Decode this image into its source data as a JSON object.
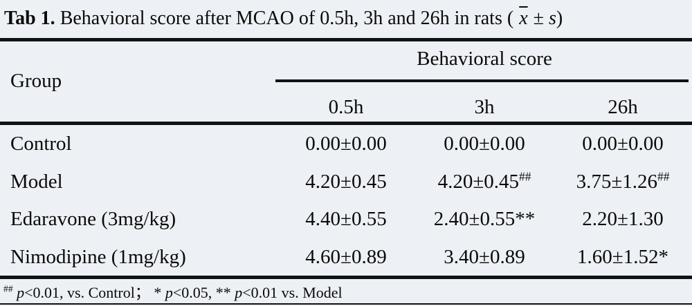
{
  "colors": {
    "background": "#edf0f4",
    "rule": "#101214",
    "text": "#0a0a0a"
  },
  "caption": {
    "tag": "Tab 1.",
    "text": "Behavioral score after MCAO of 0.5h, 3h and 26h in rats (",
    "mean_symbol": "x",
    "plus_minus": "±",
    "sd_symbol": "s",
    "close_paren": ")"
  },
  "table": {
    "group_header": "Group",
    "span_header": "Behavioral score",
    "time_columns": [
      "0.5h",
      "3h",
      "26h"
    ],
    "rows": [
      {
        "group": "Control",
        "cells": [
          {
            "text": "0.00±0.00"
          },
          {
            "text": "0.00±0.00"
          },
          {
            "text": "0.00±0.00"
          }
        ]
      },
      {
        "group": "Model",
        "cells": [
          {
            "text": "4.20±0.45"
          },
          {
            "text": "4.20±0.45",
            "sup": "##"
          },
          {
            "text": "3.75±1.26",
            "sup": "##"
          }
        ]
      },
      {
        "group": "Edaravone (3mg/kg)",
        "cells": [
          {
            "text": "4.40±0.55"
          },
          {
            "text": "2.40±0.55**"
          },
          {
            "text": "2.20±1.30"
          }
        ]
      },
      {
        "group": "Nimodipine (1mg/kg)",
        "cells": [
          {
            "text": "4.60±0.89"
          },
          {
            "text": "3.40±0.89"
          },
          {
            "text": "1.60±1.52*"
          }
        ]
      }
    ]
  },
  "footnote": {
    "parts": [
      {
        "sup": "##"
      },
      {
        "text": " "
      },
      {
        "i": "p"
      },
      {
        "text": "<0.01, vs. Control；  * "
      },
      {
        "i": "p"
      },
      {
        "text": "<0.05, ** "
      },
      {
        "i": "p"
      },
      {
        "text": "<0.01 vs. Model"
      }
    ]
  }
}
